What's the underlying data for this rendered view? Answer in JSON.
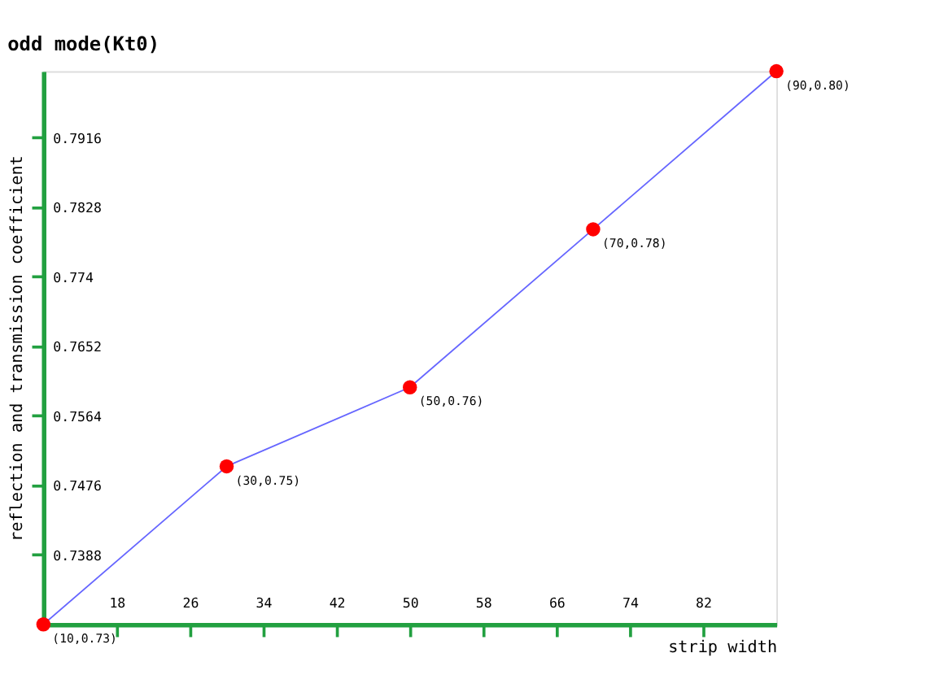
{
  "chart_data": {
    "type": "line",
    "title": "odd mode(Kt0)",
    "xlabel": "strip width",
    "ylabel": "reflection and transmission coefficient",
    "x": [
      10,
      30,
      50,
      70,
      90
    ],
    "series": [
      {
        "color": "#6666ff",
        "values": [
          0.73,
          0.75,
          0.76,
          0.78,
          0.8
        ],
        "value_labels": [
          "(10,0.73)",
          "(30,0.75)",
          "(50,0.76)",
          "(70,0.78)",
          "(90,0.80)"
        ]
      }
    ],
    "marker": "circle",
    "line_style": "solid",
    "grid": false,
    "xlim": [
      10,
      90
    ],
    "xticks": [
      18,
      26,
      34,
      42,
      50,
      58,
      66,
      74,
      82
    ],
    "ylim": [
      0.73,
      0.8
    ],
    "yticks": [
      0.7388,
      0.7476,
      0.7564,
      0.7652,
      0.774,
      0.7828,
      0.7916
    ]
  }
}
